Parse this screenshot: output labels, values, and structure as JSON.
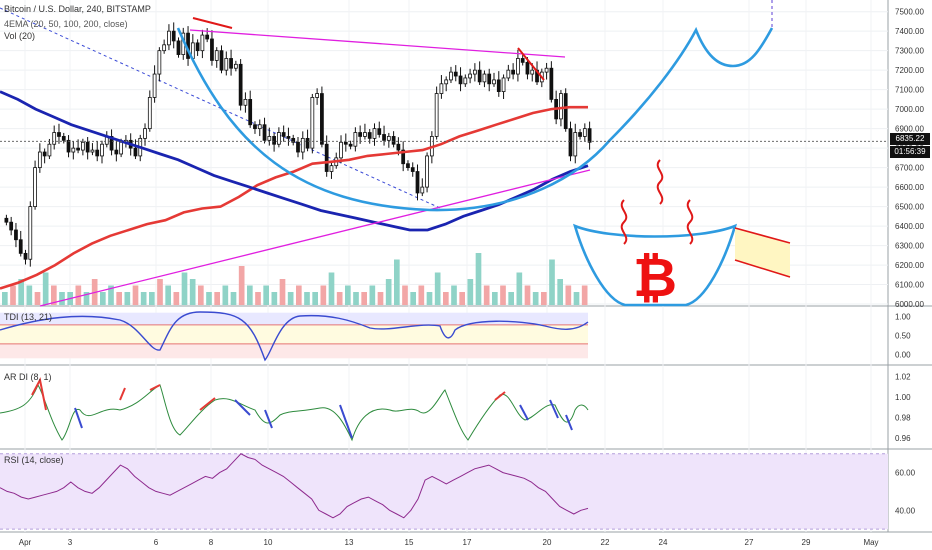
{
  "symbol_line": "Bitcoin / U.S. Dollar, 240, BITSTAMP",
  "ema_line": "4EMA (20, 50, 100, 200, close)",
  "vol_line": "Vol (20)",
  "tdi_label": "TDI (13, 21)",
  "ardi_label": "AR DI (8, 1)",
  "rsi_label": "RSI (14, close)",
  "price_tag": "6835.22",
  "countdown_tag": "01:56:39",
  "bitcoin_symbol": "₿",
  "colors": {
    "bull": "#26a69a",
    "bear": "#111111",
    "ema_red": "#e53935",
    "ema_blue": "#1a24b0",
    "curve": "#2e9be0",
    "trend": "#e01fe0",
    "rsi_fill": "#efe4fb"
  },
  "chart_data": [
    {
      "type": "candlestick",
      "title": "Bitcoin / U.S. Dollar, 240, BITSTAMP",
      "x_ticks": [
        "Apr",
        "3",
        "6",
        "8",
        "10",
        "13",
        "15",
        "17",
        "20",
        "22",
        "24",
        "27",
        "29",
        "May"
      ],
      "y_ticks": [
        "7500.00",
        "7400.00",
        "7300.00",
        "7200.00",
        "7100.00",
        "7000.00",
        "6900.00",
        "6800.00",
        "6700.00",
        "6600.00",
        "6500.00",
        "6400.00",
        "6300.00",
        "6200.00",
        "6100.00",
        "6000.00"
      ],
      "ylim": [
        5990,
        7560
      ],
      "close": [
        6420,
        6380,
        6330,
        6260,
        6230,
        6500,
        6700,
        6780,
        6760,
        6820,
        6880,
        6860,
        6840,
        6780,
        6800,
        6790,
        6830,
        6780,
        6790,
        6760,
        6820,
        6860,
        6790,
        6770,
        6830,
        6840,
        6800,
        6760,
        6850,
        6900,
        7060,
        7180,
        7300,
        7330,
        7400,
        7350,
        7280,
        7390,
        7260,
        7340,
        7300,
        7380,
        7360,
        7250,
        7300,
        7200,
        7260,
        7210,
        7230,
        7020,
        7050,
        6920,
        6900,
        6920,
        6840,
        6860,
        6820,
        6880,
        6860,
        6850,
        6830,
        6780,
        6850,
        6800,
        7060,
        7080,
        6820,
        6680,
        6710,
        6750,
        6830,
        6820,
        6810,
        6880,
        6860,
        6880,
        6850,
        6900,
        6870,
        6840,
        6860,
        6820,
        6790,
        6720,
        6700,
        6680,
        6570,
        6600,
        6760,
        6860,
        7080,
        7130,
        7150,
        7190,
        7170,
        7130,
        7160,
        7180,
        7200,
        7140,
        7180,
        7130,
        7150,
        7090,
        7160,
        7200,
        7180,
        7260,
        7240,
        7180,
        7200,
        7140,
        7190,
        7210,
        7050,
        6950,
        7080,
        6900,
        6760,
        6880,
        6860,
        6900,
        6830
      ],
      "series": [
        {
          "name": "EMA 100",
          "values": [
            6080,
            6110,
            6150,
            6200,
            6260,
            6310,
            6350,
            6380,
            6410,
            6430,
            6470,
            6490,
            6500,
            6550,
            6610,
            6650,
            6680,
            6720,
            6730,
            6740,
            6760,
            6770,
            6780,
            6790,
            6820,
            6860,
            6890,
            6920,
            6950,
            6980,
            7000,
            7010,
            7010
          ]
        },
        {
          "name": "EMA 200",
          "values": [
            7090,
            7050,
            7000,
            6960,
            6920,
            6890,
            6860,
            6830,
            6800,
            6770,
            6740,
            6700,
            6660,
            6630,
            6600,
            6570,
            6540,
            6510,
            6480,
            6460,
            6440,
            6420,
            6400,
            6380,
            6380,
            6410,
            6450,
            6480,
            6510,
            6550,
            6590,
            6640,
            6680,
            6710
          ]
        },
        {
          "name": "Volume",
          "values": [
            2,
            3,
            4,
            3,
            2,
            5,
            3,
            2,
            2,
            3,
            2,
            4,
            2,
            3,
            2,
            2,
            3,
            2,
            2,
            4,
            3,
            2,
            5,
            4,
            3,
            2,
            2,
            3,
            2,
            6,
            3,
            2,
            3,
            2,
            4,
            2,
            3,
            2,
            2,
            3,
            5,
            2,
            3,
            2,
            2,
            3,
            2,
            4,
            7,
            3,
            2,
            3,
            2,
            5,
            2,
            3,
            2,
            4,
            8,
            3,
            2,
            3,
            2,
            5,
            3,
            2,
            2,
            7,
            4,
            3,
            2,
            3
          ]
        }
      ]
    },
    {
      "type": "line",
      "title": "TDI (13, 21)",
      "y_ticks": [
        "1.00",
        "0.50",
        "0.00"
      ],
      "ylim": [
        -0.25,
        1.25
      ]
    },
    {
      "type": "line",
      "title": "AR DI (8, 1)",
      "y_ticks": [
        "1.02",
        "1.00",
        "0.98",
        "0.96"
      ],
      "ylim": [
        0.95,
        1.03
      ]
    },
    {
      "type": "line",
      "title": "RSI (14, close)",
      "y_ticks": [
        "60.00",
        "40.00"
      ],
      "ylim": [
        29,
        72
      ],
      "values": [
        52,
        50,
        49,
        47,
        46,
        47,
        48,
        49,
        50,
        52,
        55,
        52,
        50,
        49,
        52,
        56,
        60,
        64,
        62,
        58,
        55,
        52,
        50,
        49,
        48,
        50,
        52,
        54,
        56,
        58,
        57,
        60,
        62,
        66,
        70,
        68,
        67,
        64,
        62,
        60,
        58,
        55,
        52,
        49,
        46,
        40,
        38,
        36,
        38,
        42,
        44,
        46,
        47,
        45,
        43,
        40,
        38,
        36,
        40,
        46,
        56,
        58,
        56,
        54,
        56,
        58,
        60,
        62,
        63,
        64,
        62,
        60,
        59,
        58,
        57,
        55,
        52,
        50,
        46,
        42,
        40,
        38,
        40,
        41
      ]
    }
  ]
}
